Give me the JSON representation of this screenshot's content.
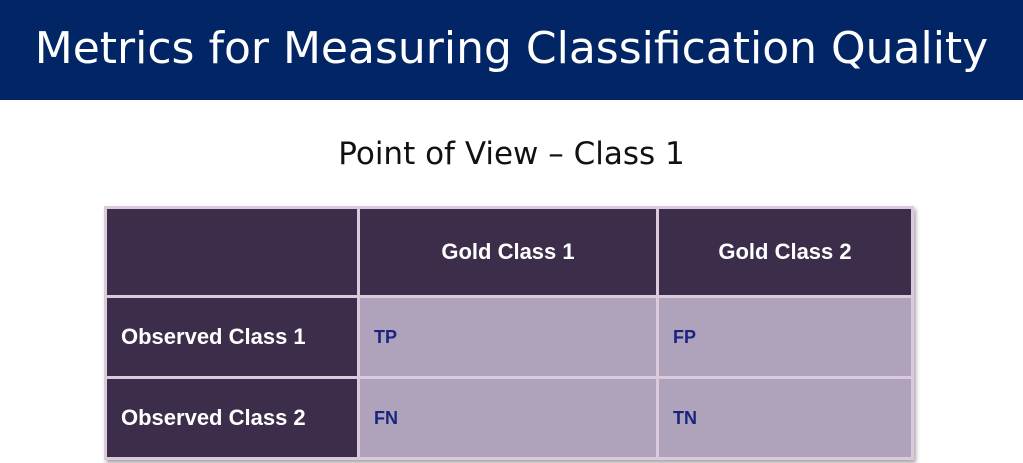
{
  "slide": {
    "title": "Metrics for Measuring Classification Quality",
    "subtitle": "Point of View – Class 1"
  },
  "matrix": {
    "corner": "",
    "columns": [
      "Gold Class 1",
      "Gold Class 2"
    ],
    "rows": [
      {
        "label": "Observed Class 1",
        "cells": [
          "TP",
          "FP"
        ]
      },
      {
        "label": "Observed Class 2",
        "cells": [
          "FN",
          "TN"
        ]
      }
    ]
  },
  "colors": {
    "title_bar": "#022566",
    "header_cell": "#3c2e4b",
    "body_cell": "#afa3bc",
    "body_text": "#1a237e"
  }
}
